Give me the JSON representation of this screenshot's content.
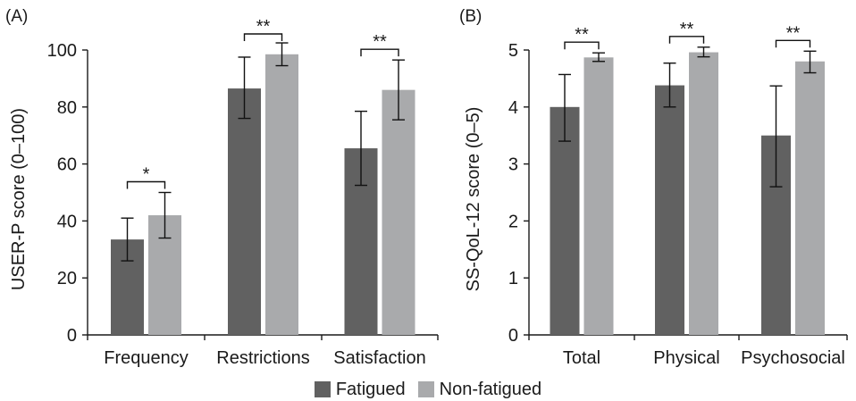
{
  "colors": {
    "fatigued": "#616161",
    "non_fatigued": "#a9aaac",
    "axis": "#1a1a1a"
  },
  "legend": {
    "fatigued": "Fatigued",
    "non_fatigued": "Non-fatigued"
  },
  "chart_data": [
    {
      "panel": "(A)",
      "type": "bar",
      "ylabel": "USER-P score (0–100)",
      "ylim": [
        0,
        100
      ],
      "yticks": [
        "0",
        "20",
        "40",
        "60",
        "80",
        "100"
      ],
      "categories": [
        "Frequency",
        "Restrictions",
        "Satisfaction"
      ],
      "series": [
        {
          "name": "Fatigued",
          "values": [
            33.5,
            86.5,
            65.5
          ],
          "err_low": [
            26,
            76,
            52.5
          ],
          "err_high": [
            41,
            97.5,
            78.5
          ]
        },
        {
          "name": "Non-fatigued",
          "values": [
            42,
            98.5,
            86
          ],
          "err_low": [
            34,
            94.5,
            75.5
          ],
          "err_high": [
            50,
            102.5,
            96.5
          ]
        }
      ],
      "significance": [
        "*",
        "**",
        "**"
      ]
    },
    {
      "panel": "(B)",
      "type": "bar",
      "ylabel": "SS-QoL-12 score (0–5)",
      "ylim": [
        0,
        5
      ],
      "yticks": [
        "0",
        "1",
        "2",
        "3",
        "4",
        "5"
      ],
      "categories": [
        "Total",
        "Physical",
        "Psychosocial"
      ],
      "series": [
        {
          "name": "Fatigued",
          "values": [
            4.0,
            4.38,
            3.5
          ],
          "err_low": [
            3.4,
            4.0,
            2.6
          ],
          "err_high": [
            4.57,
            4.77,
            4.37
          ]
        },
        {
          "name": "Non-fatigued",
          "values": [
            4.87,
            4.96,
            4.8
          ],
          "err_low": [
            4.8,
            4.88,
            4.6
          ],
          "err_high": [
            4.95,
            5.05,
            4.98
          ]
        }
      ],
      "significance": [
        "**",
        "**",
        "**"
      ]
    }
  ]
}
